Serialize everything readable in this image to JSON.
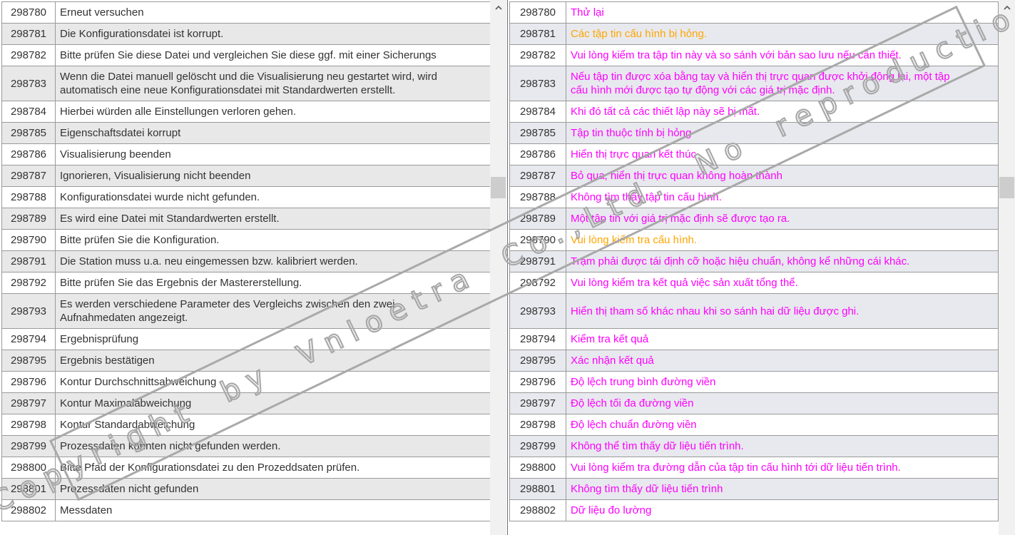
{
  "colors": {
    "vietnamese_text": "#ff00ff",
    "highlight_text": "#ffa500",
    "german_text": "#333333",
    "stripe_left": "#e8e8e8",
    "stripe_right": "#e7e9ee"
  },
  "watermark": {
    "text": "Copyright by Vnloetra Co.,Ltd. No reproduction"
  },
  "scrollbars": {
    "up_icon": "chevron-up"
  },
  "rows": [
    {
      "id": "298780",
      "de": "Erneut versuchen",
      "vi": "Thử lại"
    },
    {
      "id": "298781",
      "de": "Die Konfigurationsdatei ist korrupt.",
      "vi": "Các tập tin cấu hình bị hỏng.",
      "vi_color": "orange"
    },
    {
      "id": "298782",
      "de": "Bitte prüfen Sie diese Datei und vergleichen Sie diese ggf. mit einer Sicherungs",
      "vi": "Vui lòng kiểm tra tập tin này và so sánh với bản sao lưu nếu cần thiết."
    },
    {
      "id": "298783",
      "de": "Wenn die Datei manuell gelöscht und die Visualisierung neu gestartet wird, wird\nautomatisch eine neue Konfigurationsdatei mit Standardwerten erstellt.",
      "vi": "Nếu tập tin được xóa bằng tay và hiển thị trực quan được khởi động lại, một tập\ncấu hình mới được tạo tự động với các giá trị mặc định."
    },
    {
      "id": "298784",
      "de": "Hierbei würden alle Einstellungen verloren gehen.",
      "vi": "Khi đó tất cả các thiết lập này sẽ bị mất."
    },
    {
      "id": "298785",
      "de": "Eigenschaftsdatei korrupt",
      "vi": "Tập tin thuộc tính bị hỏng"
    },
    {
      "id": "298786",
      "de": "Visualisierung beenden",
      "vi": "Hiển thị trực quan kết thúc"
    },
    {
      "id": "298787",
      "de": "Ignorieren, Visualisierung nicht beenden",
      "vi": "Bỏ qua, hiển thị trực quan không hoàn thành"
    },
    {
      "id": "298788",
      "de": "Konfigurationsdatei wurde nicht gefunden.",
      "vi": "Không tìm thấy tập tin cấu hình."
    },
    {
      "id": "298789",
      "de": "Es wird eine Datei mit Standardwerten erstellt.",
      "vi": "Một tập tin với giá trị mặc định sẽ được tạo ra."
    },
    {
      "id": "298790",
      "de": "Bitte prüfen Sie die Konfiguration.",
      "vi": "Vui lòng kiểm tra cấu hình.",
      "vi_color": "orange"
    },
    {
      "id": "298791",
      "de": "Die Station muss u.a. neu eingemessen bzw. kalibriert werden.",
      "vi": "Trạm phải được tái định cỡ hoặc hiệu chuẩn, không kể những cái khác."
    },
    {
      "id": "298792",
      "de": "Bitte prüfen Sie das Ergebnis der Mastererstellung.",
      "vi": "Vui lòng kiểm tra kết quả việc sản xuất tổng thể."
    },
    {
      "id": "298793",
      "de": "Es werden verschiedene Parameter des Vergleichs zwischen den zwei\nAufnahmedaten angezeigt.",
      "vi": "Hiển thị tham số khác nhau khi so sánh hai dữ liệu được ghi."
    },
    {
      "id": "298794",
      "de": "Ergebnisprüfung",
      "vi": "Kiểm tra kết quả"
    },
    {
      "id": "298795",
      "de": "Ergebnis bestätigen",
      "vi": "Xác nhận kết quả"
    },
    {
      "id": "298796",
      "de": "Kontur Durchschnittsabweichung",
      "vi": "Độ lệch trung bình đường viền"
    },
    {
      "id": "298797",
      "de": "Kontur Maximalabweichung",
      "vi": "Độ lệch tối đa đường viền"
    },
    {
      "id": "298798",
      "de": "Kontur Standardabweichung",
      "vi": "Độ lệch chuẩn đường viền"
    },
    {
      "id": "298799",
      "de": "Prozessdaten konnten nicht gefunden werden.",
      "vi": "Không thể tìm thấy dữ liệu tiến trình."
    },
    {
      "id": "298800",
      "de": "Bitte Pfad der Konfigurationsdatei zu den Prozeddsaten prüfen.",
      "vi": "Vui lòng kiểm tra đường dẫn của tập tin cấu hình tới dữ liệu tiến trình."
    },
    {
      "id": "298801",
      "de": "Prozessdaten nicht gefunden",
      "vi": "Không tìm thấy dữ liệu tiến trình"
    },
    {
      "id": "298802",
      "de": "Messdaten",
      "vi": "Dữ liệu đo lường"
    }
  ]
}
